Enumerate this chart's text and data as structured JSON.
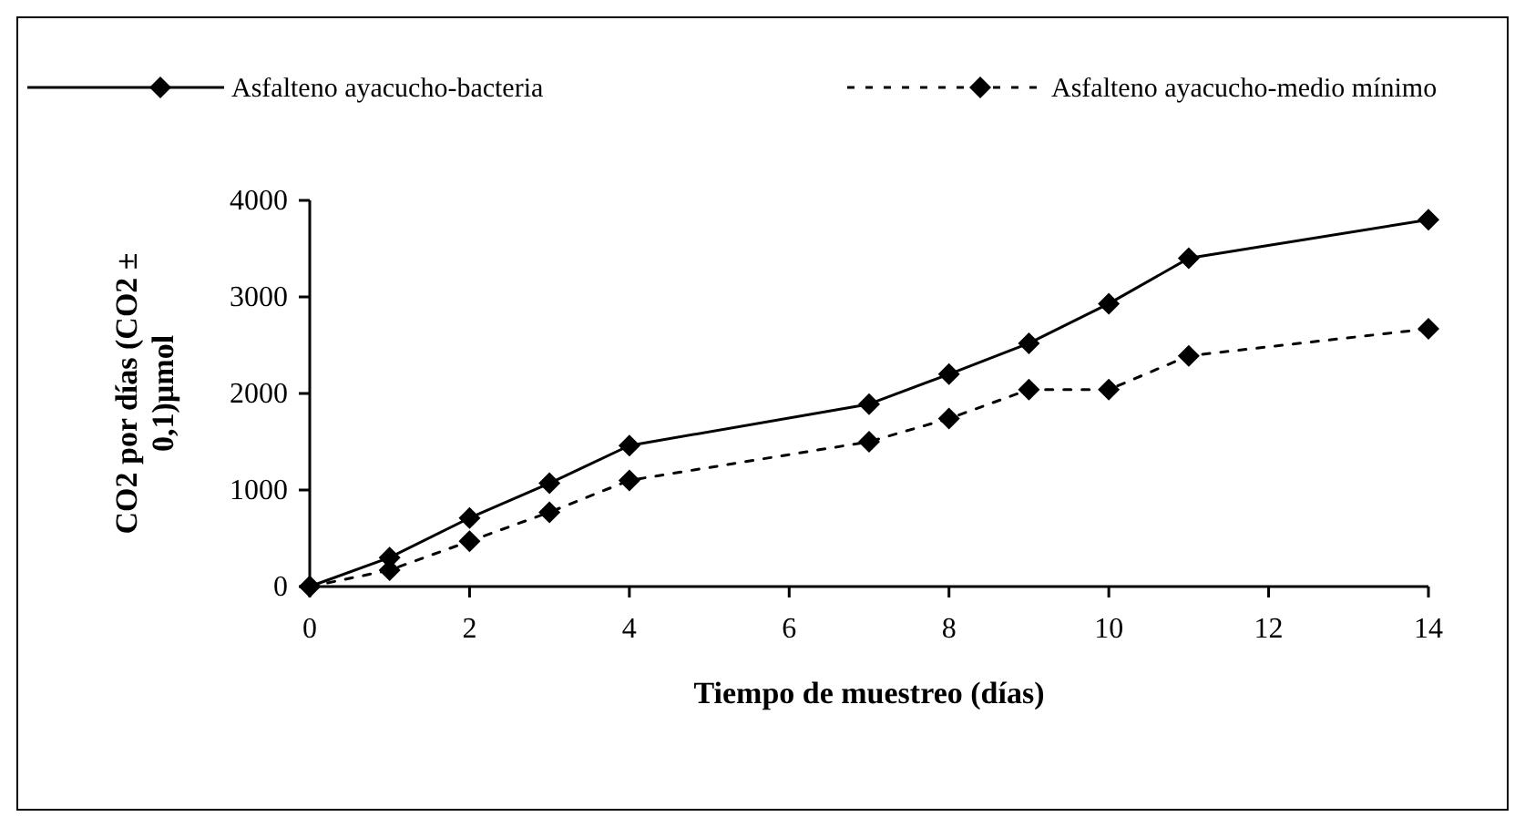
{
  "chart_data": {
    "type": "line",
    "xlabel": "Tiempo de muestreo (días)",
    "ylabel": "CO2 por días (CO2 ± 0,1)µmol",
    "x": [
      0,
      1,
      2,
      3,
      4,
      7,
      8,
      9,
      10,
      11,
      14
    ],
    "xlim": [
      0,
      14
    ],
    "xticks": [
      0,
      2,
      4,
      6,
      8,
      10,
      12,
      14
    ],
    "ylim": [
      0,
      4000
    ],
    "yticks": [
      0,
      1000,
      2000,
      3000,
      4000
    ],
    "grid": false,
    "legend": "top",
    "marker": "diamond",
    "series": [
      {
        "name": "Asfalteno ayacucho-bacteria",
        "color": "#000000",
        "line_style": "solid",
        "values": [
          0,
          300,
          710,
          1070,
          1460,
          1890,
          2200,
          2520,
          2930,
          3400,
          3800
        ]
      },
      {
        "name": "Asfalteno ayacucho-medio mínimo",
        "color": "#000000",
        "line_style": "dotted",
        "values": [
          0,
          170,
          470,
          770,
          1100,
          1500,
          1740,
          2040,
          2040,
          2390,
          2670
        ]
      }
    ]
  }
}
